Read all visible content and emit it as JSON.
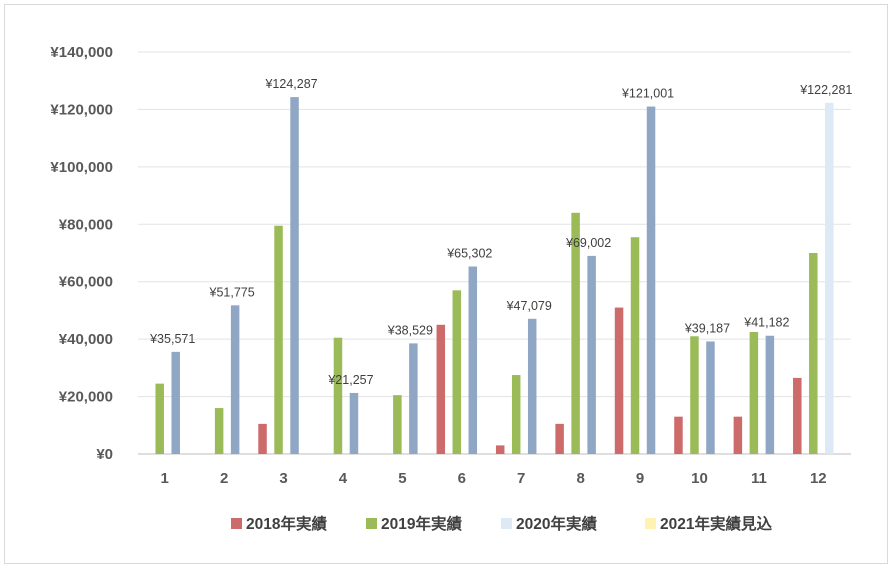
{
  "chart_data": {
    "type": "bar",
    "categories": [
      "1",
      "2",
      "3",
      "4",
      "5",
      "6",
      "7",
      "8",
      "9",
      "10",
      "11",
      "12"
    ],
    "ylim": [
      0,
      140000
    ],
    "yticks": [
      {
        "value": 0,
        "label": "¥0"
      },
      {
        "value": 20000,
        "label": "¥20,000"
      },
      {
        "value": 40000,
        "label": "¥40,000"
      },
      {
        "value": 60000,
        "label": "¥60,000"
      },
      {
        "value": 80000,
        "label": "¥80,000"
      },
      {
        "value": 100000,
        "label": "¥100,000"
      },
      {
        "value": 120000,
        "label": "¥120,000"
      },
      {
        "value": 140000,
        "label": "¥140,000"
      }
    ],
    "grid": true,
    "legend_position": "bottom",
    "series": [
      {
        "name": "2018年実績",
        "color": "#cd6b6b",
        "values": [
          0,
          0,
          10500,
          0,
          0,
          45000,
          3000,
          10500,
          51000,
          13000,
          13000,
          26500
        ],
        "labels": [
          "",
          "",
          "",
          "",
          "",
          "",
          "",
          "",
          "",
          "",
          "",
          ""
        ]
      },
      {
        "name": "2019年実績",
        "color": "#9bbb59",
        "values": [
          24500,
          16000,
          79500,
          40500,
          20500,
          57000,
          27500,
          84000,
          75500,
          41000,
          42500,
          70000
        ],
        "labels": [
          "",
          "",
          "",
          "",
          "",
          "",
          "",
          "",
          "",
          "",
          "",
          ""
        ]
      },
      {
        "name": "2020年実績",
        "color": "#8fa7c4",
        "legend_color": "#dde9f5",
        "point_colors": [
          "",
          "",
          "",
          "",
          "",
          "",
          "",
          "",
          "",
          "",
          "",
          "#dde9f5"
        ],
        "values": [
          35571,
          51775,
          124287,
          21257,
          38529,
          65302,
          47079,
          69002,
          121001,
          39187,
          41182,
          122281
        ],
        "labels": [
          "¥35,571",
          "¥51,775",
          "¥124,287",
          "¥21,257",
          "¥38,529",
          "¥65,302",
          "¥47,079",
          "¥69,002",
          "¥121,001",
          "¥39,187",
          "¥41,182",
          "¥122,281"
        ]
      },
      {
        "name": "2021年実績見込",
        "color": "#fff2b3",
        "values": [
          0,
          0,
          0,
          0,
          0,
          0,
          0,
          0,
          0,
          0,
          0,
          0
        ],
        "labels": [
          "",
          "",
          "",
          "",
          "",
          "",
          "",
          "",
          "",
          "",
          "",
          ""
        ]
      }
    ]
  }
}
